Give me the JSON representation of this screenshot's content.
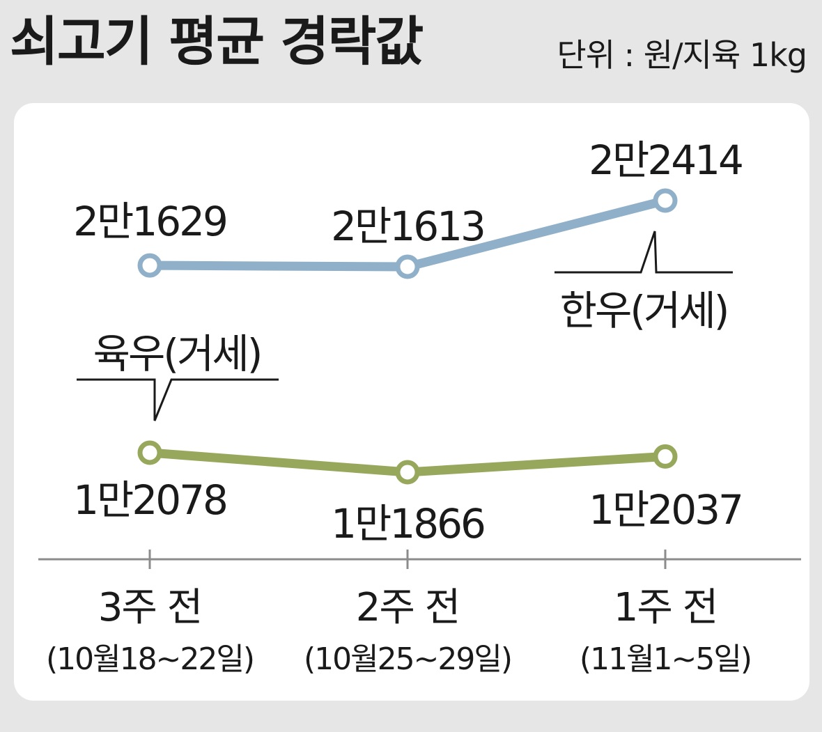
{
  "title": "쇠고기 평균 경락값",
  "unit": "단위 : 원/지육 1kg",
  "chart_data": {
    "type": "line",
    "x": [
      {
        "label": "3주 전",
        "sublabel": "(10월18~22일)"
      },
      {
        "label": "2주 전",
        "sublabel": "(10월25~29일)"
      },
      {
        "label": "1주 전",
        "sublabel": "(11월1~5일)"
      }
    ],
    "series": [
      {
        "name": "한우(거세)",
        "color": "#8fb0c8",
        "values": [
          21629,
          21613,
          22414
        ],
        "data_labels": [
          "2만1629",
          "2만1613",
          "2만2414"
        ]
      },
      {
        "name": "육우(거세)",
        "color": "#97a85c",
        "values": [
          12078,
          11866,
          12037
        ],
        "data_labels": [
          "1만2078",
          "1만1866",
          "1만2037"
        ]
      }
    ],
    "grid": false,
    "legend": "callout labels on lines"
  }
}
